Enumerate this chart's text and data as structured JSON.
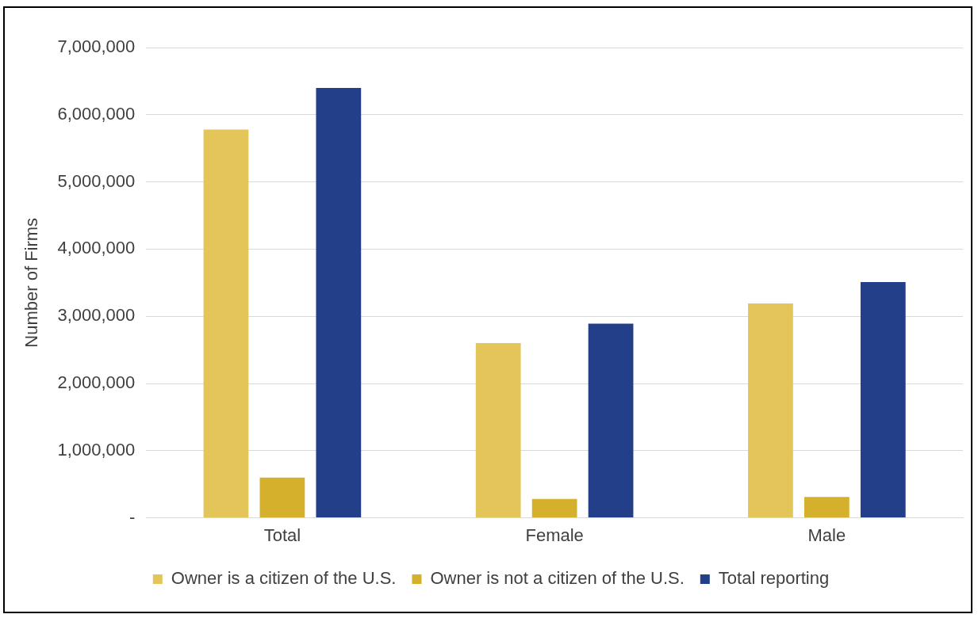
{
  "chart_data": {
    "type": "bar",
    "ylabel": "Number of Firms",
    "categories": [
      "Total",
      "Female",
      "Male"
    ],
    "series": [
      {
        "name": "Owner is a citizen of the U.S.",
        "color": "#e3c55a",
        "values": [
          5780000,
          2600000,
          3190000
        ]
      },
      {
        "name": "Owner is not a citizen of the U.S.",
        "color": "#d4b02d",
        "values": [
          600000,
          280000,
          310000
        ]
      },
      {
        "name": "Total reporting",
        "color": "#233f8a",
        "values": [
          6400000,
          2890000,
          3510000
        ]
      }
    ],
    "ylim": [
      0,
      7000000
    ],
    "yticks": [
      {
        "value": 0,
        "label": "-"
      },
      {
        "value": 1000000,
        "label": "1,000,000"
      },
      {
        "value": 2000000,
        "label": "2,000,000"
      },
      {
        "value": 3000000,
        "label": "3,000,000"
      },
      {
        "value": 4000000,
        "label": "4,000,000"
      },
      {
        "value": 5000000,
        "label": "5,000,000"
      },
      {
        "value": 6000000,
        "label": "6,000,000"
      },
      {
        "value": 7000000,
        "label": "7,000,000"
      }
    ],
    "grid": "y",
    "legend": "bottom"
  }
}
